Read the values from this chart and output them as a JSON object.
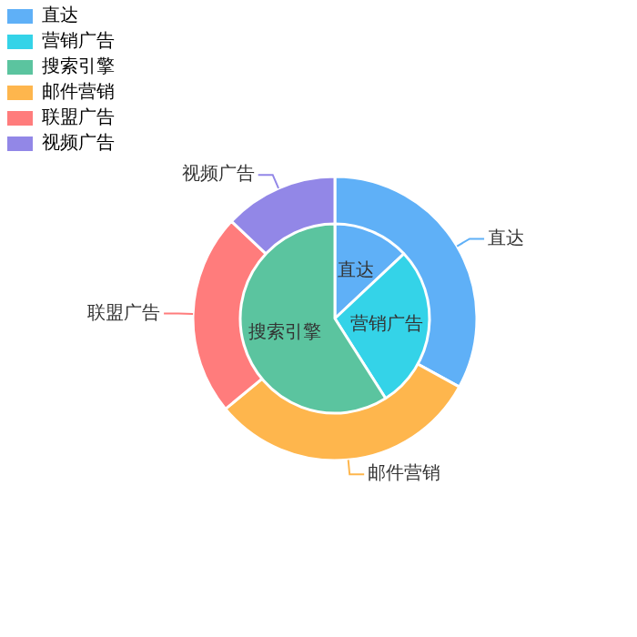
{
  "chart_data": {
    "type": "pie",
    "legend": "top left",
    "categories": [
      "直达",
      "营销广告",
      "搜索引擎",
      "邮件营销",
      "联盟广告",
      "视频广告"
    ],
    "colors": [
      "#5fb0f7",
      "#34d3e8",
      "#5bc49f",
      "#feb64d",
      "#ff7c7c",
      "#9287e7"
    ],
    "series": [
      {
        "type": "donut",
        "values": [
          33,
          null,
          null,
          31,
          23,
          13
        ]
      },
      {
        "values": [
          13,
          28,
          59,
          null,
          null,
          null
        ]
      }
    ]
  }
}
